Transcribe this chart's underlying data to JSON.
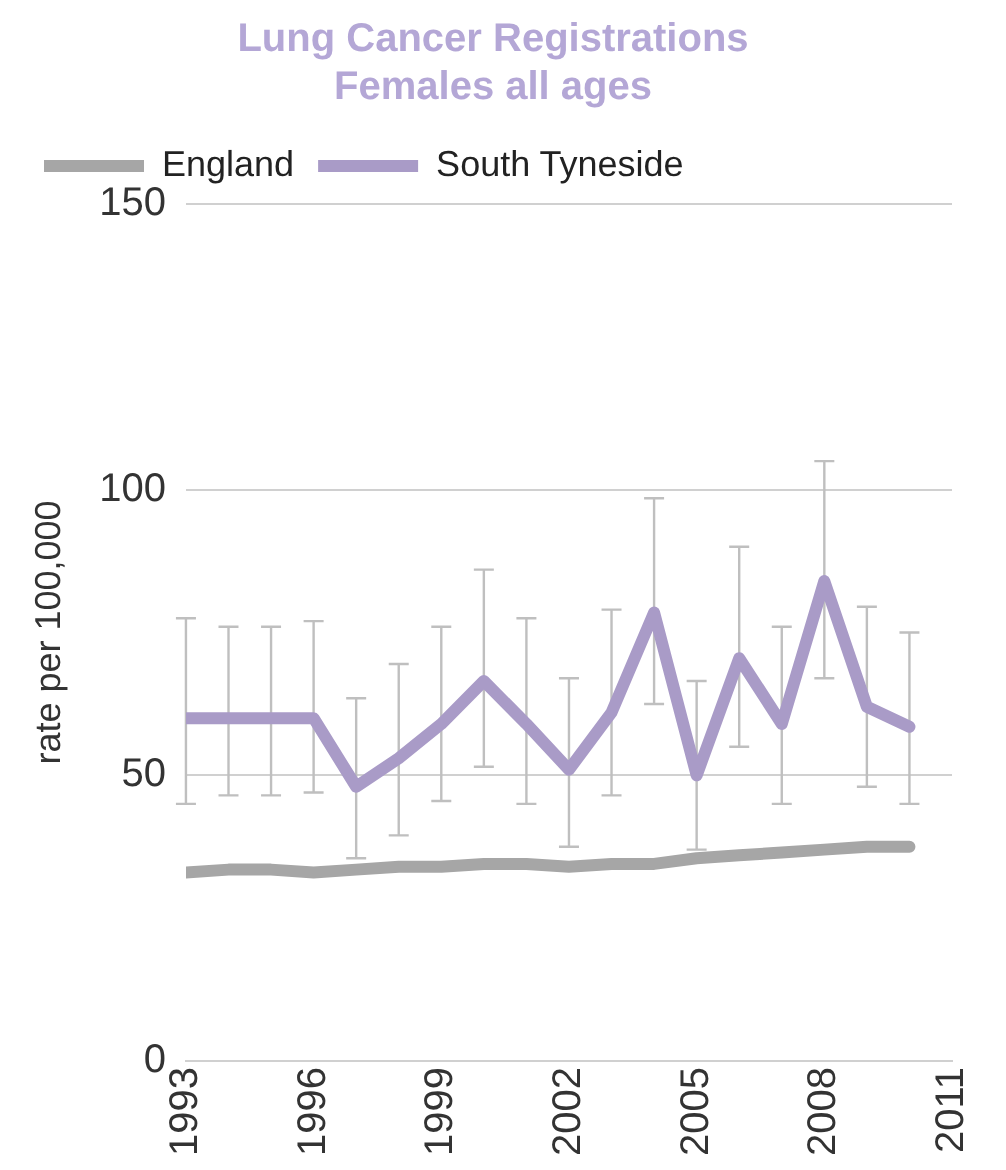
{
  "chart_data": {
    "type": "line",
    "title": "Lung Cancer Registrations\nFemales all ages",
    "ylabel": "rate per 100,000",
    "x": [
      1993,
      1994,
      1995,
      1996,
      1997,
      1998,
      1999,
      2000,
      2001,
      2002,
      2003,
      2004,
      2005,
      2006,
      2007,
      2008,
      2009,
      2010
    ],
    "xlim": [
      1993,
      2011
    ],
    "xticks": [
      1993,
      1996,
      1999,
      2002,
      2005,
      2008,
      2011
    ],
    "ylim": [
      0,
      150
    ],
    "yticks": [
      0,
      50,
      100,
      150
    ],
    "grid": "y",
    "legend": "top",
    "marker": "none",
    "line_style": "solid",
    "series": [
      {
        "name": "England",
        "color": "#a6a6a6",
        "values": [
          33,
          33.5,
          33.5,
          33,
          33.5,
          34,
          34,
          34.5,
          34.5,
          34,
          34.5,
          34.5,
          35.5,
          36,
          36.5,
          37,
          37.5,
          37.5
        ]
      },
      {
        "name": "South Tyneside",
        "color": "#a99bc7",
        "values": [
          60,
          60,
          60,
          60,
          48,
          53,
          59,
          66.5,
          59,
          51,
          61,
          78.5,
          50,
          70.5,
          59,
          84,
          62,
          58.5
        ],
        "errors": [
          [
            45,
            77.5
          ],
          [
            46.5,
            76
          ],
          [
            46.5,
            76
          ],
          [
            47,
            77
          ],
          [
            35.5,
            63.5
          ],
          [
            39.5,
            69.5
          ],
          [
            45.5,
            76
          ],
          [
            51.5,
            86
          ],
          [
            45,
            77.5
          ],
          [
            37.5,
            67
          ],
          [
            46.5,
            79
          ],
          [
            62.5,
            98.5
          ],
          [
            37,
            66.5
          ],
          [
            55,
            90
          ],
          [
            45,
            76
          ],
          [
            67,
            105
          ],
          [
            48,
            79.5
          ],
          [
            45,
            75
          ]
        ]
      }
    ]
  }
}
